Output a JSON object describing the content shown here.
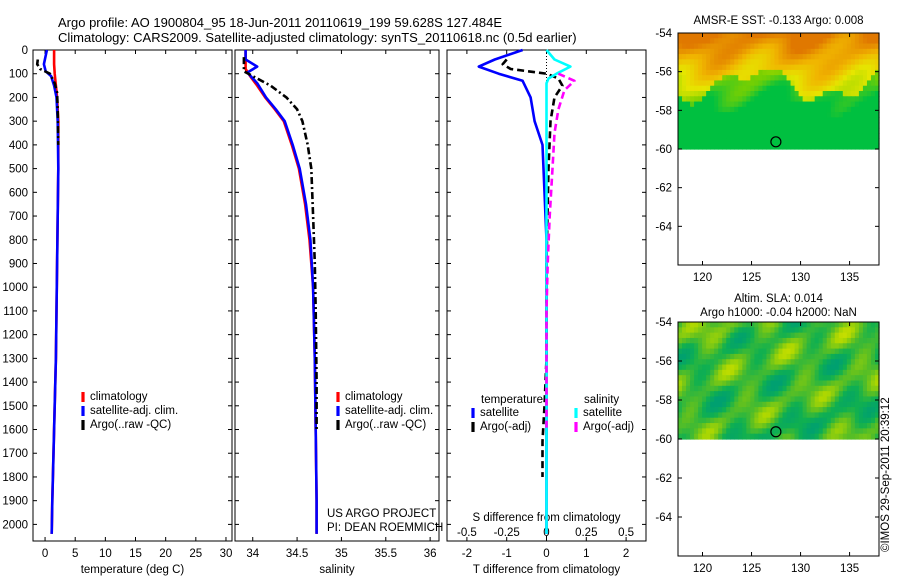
{
  "header": {
    "line1": "Argo profile: AO 1900804_95 18-Jun-2011 20110619_199 59.628S 127.484E",
    "line2": "Climatology: CARS2009. Satellite-adjusted climatology: synTS_20110618.nc (0.5d earlier)"
  },
  "credit": {
    "project": "US ARGO PROJECT",
    "pi": "PI: DEAN ROEMMICH",
    "stamp": "©IMOS 29-Sep-2011 20:39:12"
  },
  "colors": {
    "climatology": "#ff0000",
    "satellite": "#0000ff",
    "argo": "#000000",
    "satellite_s": "#00ffff",
    "argo_s": "#ff00ff"
  },
  "chart_data": [
    {
      "type": "line",
      "panel": "temperature",
      "xlabel": "temperature (deg C)",
      "xlim": [
        -2,
        31
      ],
      "ylim": [
        2070,
        0
      ],
      "y_inverted": true,
      "xticks": [
        0,
        5,
        10,
        15,
        20,
        25,
        30
      ],
      "yticks": [
        0,
        100,
        200,
        300,
        400,
        500,
        600,
        700,
        800,
        900,
        1000,
        1100,
        1200,
        1300,
        1400,
        1500,
        1600,
        1700,
        1800,
        1900,
        2000
      ],
      "legend": "lower-right",
      "legend_labels": [
        "climatology",
        "satellite-adj. clim.",
        "Argo(..raw -QC)"
      ],
      "series": [
        {
          "name": "climatology",
          "color": "#ff0000",
          "style": "solid",
          "points": [
            [
              1.5,
              0
            ],
            [
              1.5,
              60
            ],
            [
              1.6,
              100
            ],
            [
              1.8,
              150
            ],
            [
              2.0,
              200
            ],
            [
              2.2,
              300
            ],
            [
              2.2,
              500
            ],
            [
              2.1,
              700
            ],
            [
              2.0,
              900
            ],
            [
              1.9,
              1100
            ],
            [
              1.8,
              1300
            ],
            [
              1.6,
              1500
            ],
            [
              1.4,
              1700
            ],
            [
              1.2,
              1900
            ],
            [
              1.1,
              2040
            ]
          ]
        },
        {
          "name": "satellite-adj. clim.",
          "color": "#0000ff",
          "style": "solid",
          "points": [
            [
              0.3,
              0
            ],
            [
              -0.2,
              60
            ],
            [
              0.1,
              90
            ],
            [
              1.0,
              110
            ],
            [
              1.5,
              150
            ],
            [
              1.9,
              200
            ],
            [
              2.1,
              300
            ],
            [
              2.2,
              500
            ],
            [
              2.1,
              700
            ],
            [
              2.0,
              900
            ],
            [
              1.9,
              1100
            ],
            [
              1.8,
              1300
            ],
            [
              1.6,
              1500
            ],
            [
              1.4,
              1700
            ],
            [
              1.2,
              1900
            ],
            [
              1.1,
              2040
            ]
          ]
        },
        {
          "name": "Argo(..raw -QC)",
          "color": "#000000",
          "style": "dashdot",
          "points": [
            [
              -1.2,
              40
            ],
            [
              -1.3,
              60
            ],
            [
              -0.8,
              80
            ],
            [
              0.8,
              100
            ],
            [
              1.6,
              140
            ],
            [
              2.0,
              180
            ],
            [
              2.1,
              250
            ],
            [
              2.2,
              400
            ]
          ]
        }
      ]
    },
    {
      "type": "line",
      "panel": "salinity",
      "xlabel": "salinity",
      "xlim": [
        33.8,
        36.1
      ],
      "ylim": [
        2070,
        0
      ],
      "y_inverted": true,
      "xticks": [
        34,
        34.5,
        35,
        35.5,
        36
      ],
      "legend": "lower-right",
      "legend_labels": [
        "climatology",
        "satellite-adj. clim.",
        "Argo(..raw -QC)"
      ],
      "series": [
        {
          "name": "climatology",
          "color": "#ff0000",
          "style": "solid",
          "points": [
            [
              33.92,
              0
            ],
            [
              33.92,
              80
            ],
            [
              33.97,
              110
            ],
            [
              34.05,
              150
            ],
            [
              34.14,
              200
            ],
            [
              34.25,
              250
            ],
            [
              34.35,
              300
            ],
            [
              34.44,
              400
            ],
            [
              34.52,
              500
            ],
            [
              34.59,
              650
            ],
            [
              34.64,
              800
            ],
            [
              34.68,
              1000
            ],
            [
              34.7,
              1300
            ],
            [
              34.71,
              1600
            ],
            [
              34.72,
              1900
            ],
            [
              34.72,
              2040
            ]
          ]
        },
        {
          "name": "satellite-adj. clim.",
          "color": "#0000ff",
          "style": "solid",
          "points": [
            [
              33.92,
              0
            ],
            [
              33.92,
              40
            ],
            [
              34.05,
              70
            ],
            [
              33.94,
              95
            ],
            [
              34.05,
              140
            ],
            [
              34.15,
              200
            ],
            [
              34.26,
              250
            ],
            [
              34.36,
              300
            ],
            [
              34.45,
              400
            ],
            [
              34.53,
              500
            ],
            [
              34.6,
              650
            ],
            [
              34.65,
              800
            ],
            [
              34.68,
              1000
            ],
            [
              34.7,
              1300
            ],
            [
              34.71,
              1600
            ],
            [
              34.72,
              1900
            ],
            [
              34.72,
              2040
            ]
          ]
        },
        {
          "name": "Argo(..raw -QC)",
          "color": "#000000",
          "style": "dashdot",
          "points": [
            [
              33.9,
              30
            ],
            [
              33.9,
              90
            ],
            [
              34.0,
              110
            ],
            [
              34.2,
              150
            ],
            [
              34.38,
              200
            ],
            [
              34.5,
              250
            ],
            [
              34.56,
              300
            ],
            [
              34.62,
              400
            ],
            [
              34.66,
              500
            ],
            [
              34.68,
              700
            ],
            [
              34.7,
              900
            ],
            [
              34.71,
              1100
            ],
            [
              34.72,
              1400
            ],
            [
              34.72,
              1600
            ]
          ]
        }
      ]
    },
    {
      "type": "line",
      "panel": "difference",
      "xlabel": "T difference from climatology",
      "xlabel_top": "S difference from climatology",
      "xlim": [
        -2.5,
        2.5
      ],
      "ylim": [
        2070,
        0
      ],
      "y_inverted": true,
      "xticks": [
        -2,
        -1,
        0,
        1,
        2
      ],
      "xticks_s": [
        "-0.5",
        "-0.25",
        "0",
        "0.25",
        "0.5"
      ],
      "legend": "middle",
      "legend_groups": [
        "temperature",
        "salinity"
      ],
      "legend_labels": [
        "satellite",
        "Argo(-adj)",
        "satellite",
        "Argo(-adj)"
      ],
      "series": [
        {
          "name": "satellite",
          "group": "temperature",
          "color": "#0000ff",
          "style": "solid",
          "points": [
            [
              -0.6,
              0
            ],
            [
              -1.3,
              40
            ],
            [
              -1.7,
              70
            ],
            [
              -1.2,
              100
            ],
            [
              -0.6,
              130
            ],
            [
              -0.4,
              200
            ],
            [
              -0.3,
              300
            ],
            [
              -0.1,
              400
            ],
            [
              -0.05,
              600
            ],
            [
              0,
              800
            ],
            [
              0,
              2040
            ]
          ]
        },
        {
          "name": "Argo(-adj)",
          "group": "temperature",
          "color": "#000000",
          "style": "dashed",
          "points": [
            [
              -1.0,
              40
            ],
            [
              -1.1,
              60
            ],
            [
              -0.9,
              80
            ],
            [
              0,
              100
            ],
            [
              0.3,
              120
            ],
            [
              0.4,
              150
            ],
            [
              0.2,
              200
            ],
            [
              0.1,
              300
            ],
            [
              0.05,
              500
            ],
            [
              0,
              900
            ],
            [
              0,
              1300
            ],
            [
              -0.05,
              1500
            ],
            [
              -0.1,
              1650
            ],
            [
              -0.1,
              1800
            ]
          ]
        },
        {
          "name": "satellite",
          "group": "salinity",
          "color": "#00ffff",
          "style": "solid",
          "points": [
            [
              0,
              0
            ],
            [
              0.2,
              40
            ],
            [
              0.6,
              70
            ],
            [
              0.25,
              100
            ],
            [
              0.05,
              120
            ],
            [
              0,
              140
            ],
            [
              0,
              2040
            ]
          ]
        },
        {
          "name": "Argo(-adj)",
          "group": "salinity",
          "color": "#ff00ff",
          "style": "dashed",
          "points": [
            [
              0.3,
              100
            ],
            [
              0.7,
              130
            ],
            [
              0.45,
              170
            ],
            [
              0.3,
              250
            ],
            [
              0.2,
              350
            ],
            [
              0.15,
              500
            ],
            [
              0.08,
              700
            ],
            [
              0.03,
              900
            ],
            [
              0,
              1100
            ],
            [
              0,
              1600
            ]
          ]
        }
      ]
    },
    {
      "type": "heatmap",
      "panel": "sst-map",
      "title": "AMSR-E SST: -0.133 Argo: 0.008",
      "xlim": [
        117.5,
        138
      ],
      "ylim": [
        -66,
        -54
      ],
      "xticks": [
        120,
        125,
        130,
        135
      ],
      "yticks": [
        -54,
        -56,
        -58,
        -60,
        -62,
        -64
      ],
      "data_lat_range": [
        -60,
        -54
      ],
      "marker": [
        127.484,
        -59.628
      ],
      "palette": [
        "#00c040",
        "#7ad000",
        "#e6e600",
        "#f0b400",
        "#e07800"
      ]
    },
    {
      "type": "heatmap",
      "panel": "sla-map",
      "title": "Altim. SLA: 0.014",
      "subtitle": "Argo h1000: -0.04 h2000: NaN",
      "xlim": [
        117.5,
        138
      ],
      "ylim": [
        -66,
        -54
      ],
      "xticks": [
        120,
        125,
        130,
        135
      ],
      "yticks": [
        -54,
        -56,
        -58,
        -60,
        -62,
        -64
      ],
      "data_lat_range": [
        -60,
        -54
      ],
      "marker": [
        127.484,
        -59.628
      ],
      "palette": [
        "#00a070",
        "#10b050",
        "#60c020",
        "#b0d800",
        "#e8e800"
      ]
    }
  ]
}
